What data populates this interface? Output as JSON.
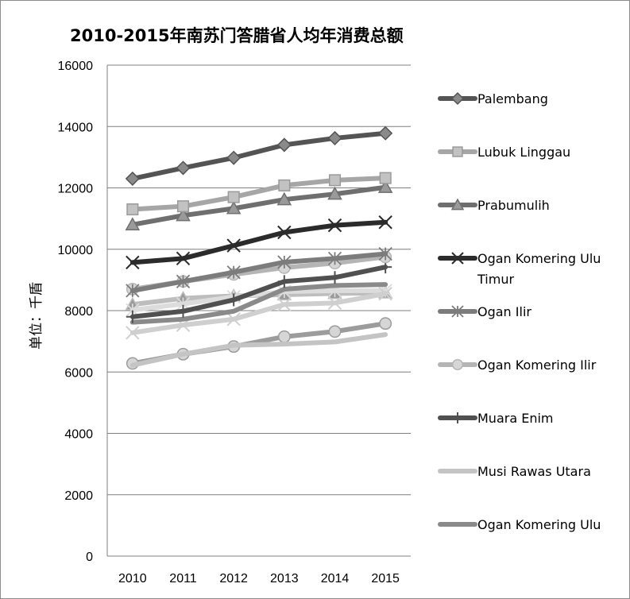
{
  "chart_data": {
    "type": "line",
    "title": "2010-2015年南苏门答腊省人均年消费总额",
    "ylabel": "单位：千盾",
    "xlabel": "",
    "categories": [
      "2010",
      "2011",
      "2012",
      "2013",
      "2014",
      "2015"
    ],
    "ylim": [
      0,
      16000
    ],
    "yticks": [
      0,
      2000,
      4000,
      6000,
      8000,
      10000,
      12000,
      14000,
      16000
    ],
    "grid": true,
    "legend_position": "right",
    "series": [
      {
        "name": "Palembang",
        "marker": "diamond",
        "color": "#545454",
        "values": [
          12300,
          12650,
          12980,
          13400,
          13620,
          13780
        ]
      },
      {
        "name": "Lubuk Linggau",
        "marker": "square",
        "color": "#a6a6a6",
        "values": [
          11300,
          11400,
          11700,
          12080,
          12250,
          12320
        ]
      },
      {
        "name": "Prabumulih",
        "marker": "triangle",
        "color": "#6f6f6f",
        "values": [
          10800,
          11100,
          11330,
          11620,
          11800,
          12020
        ]
      },
      {
        "name": "Ogan Komering Ulu Timur",
        "legend_lines": [
          "Ogan Komering Ulu",
          "Timur"
        ],
        "marker": "x",
        "color": "#2b2b2b",
        "values": [
          9570,
          9700,
          10120,
          10550,
          10780,
          10880
        ]
      },
      {
        "name": "Ogan Ilir",
        "marker": "asterisk",
        "color": "#7c7c7c",
        "values": [
          8650,
          8950,
          9250,
          9580,
          9700,
          9850
        ]
      },
      {
        "name": "Ogan Komering Ilir",
        "marker": "circle",
        "color": "#b5b5b5",
        "values": [
          8700,
          8950,
          9180,
          9400,
          9550,
          9750
        ]
      },
      {
        "name": "Muara Enim",
        "marker": "plus",
        "color": "#505050",
        "values": [
          7800,
          7980,
          8350,
          8950,
          9080,
          9420
        ]
      },
      {
        "name": "Musi Rawas Utara",
        "marker": "none",
        "color": "#c4c4c4",
        "values": [
          6220,
          6580,
          6870,
          6910,
          6980,
          7220
        ]
      },
      {
        "name": "Ogan Komering Ulu",
        "marker": "none",
        "color": "#8a8a8a",
        "values": [
          7620,
          7720,
          7980,
          8700,
          8820,
          8850
        ]
      },
      {
        "name": "",
        "marker": "circle",
        "color": "#9c9c9c",
        "values": [
          6280,
          6580,
          6830,
          7150,
          7320,
          7580
        ]
      },
      {
        "name": "",
        "marker": "x",
        "color": "#cfcfcf",
        "values": [
          7280,
          7530,
          7720,
          8200,
          8250,
          8550
        ]
      },
      {
        "name": "",
        "marker": "asterisk",
        "color": "#dcdcdc",
        "values": [
          8020,
          8220,
          8450,
          8620,
          8650,
          8650
        ]
      },
      {
        "name": "",
        "marker": "triangle",
        "color": "#bdbdbd",
        "values": [
          8200,
          8400,
          8480,
          8520,
          8560,
          8580
        ]
      }
    ]
  }
}
